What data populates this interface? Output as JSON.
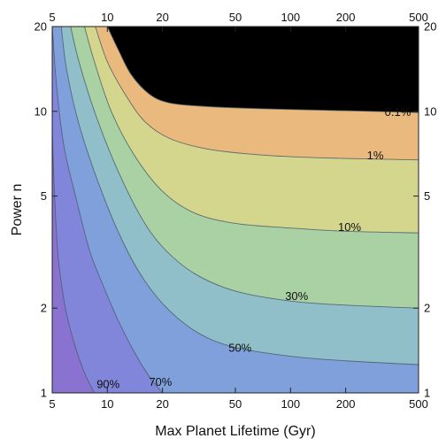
{
  "chart_data": {
    "type": "contour",
    "xlabel": "Max Planet Lifetime (Gyr)",
    "ylabel": "Power n",
    "x_scale": "log",
    "y_scale": "log",
    "xlim": [
      5,
      500
    ],
    "ylim": [
      1,
      20
    ],
    "x_ticks": [
      5,
      10,
      20,
      50,
      100,
      200,
      500
    ],
    "x_tick_labels": [
      "5",
      "10",
      "20",
      "50",
      "100",
      "200",
      "500"
    ],
    "y_ticks": [
      1,
      2,
      5,
      10,
      20
    ],
    "y_tick_labels": [
      "1",
      "2",
      "5",
      "10",
      "20"
    ],
    "grid": false,
    "band_colors": [
      "#8a72d0",
      "#8286db",
      "#7fa0db",
      "#90bfc9",
      "#a9d1a4",
      "#d3d68c",
      "#e9b97d"
    ],
    "contours": [
      {
        "label": "90%",
        "label_at": {
          "x": 10.1,
          "y": 1.08
        },
        "points": [
          [
            5,
            8.6
          ],
          [
            5.15,
            5.0
          ],
          [
            5.4,
            3.0
          ],
          [
            5.9,
            2.0
          ],
          [
            6.6,
            1.5
          ],
          [
            7.5,
            1.18
          ],
          [
            8.5,
            1.0
          ]
        ]
      },
      {
        "label": "70%",
        "label_at": {
          "x": 19.5,
          "y": 1.1
        },
        "points": [
          [
            5,
            20
          ],
          [
            5.3,
            12.0
          ],
          [
            5.8,
            7.5
          ],
          [
            6.7,
            5.0
          ],
          [
            8.0,
            3.2
          ],
          [
            9.5,
            2.4
          ],
          [
            11.5,
            1.8
          ],
          [
            14.0,
            1.4
          ],
          [
            17.0,
            1.14
          ],
          [
            20.0,
            1.0
          ]
        ]
      },
      {
        "label": "50%",
        "label_at": {
          "x": 53,
          "y": 1.45
        },
        "points": [
          [
            5.6,
            20
          ],
          [
            6.0,
            14.0
          ],
          [
            7.0,
            9.0
          ],
          [
            9.0,
            5.5
          ],
          [
            12.0,
            3.5
          ],
          [
            16.0,
            2.5
          ],
          [
            22.0,
            1.95
          ],
          [
            32.0,
            1.62
          ],
          [
            50.0,
            1.45
          ],
          [
            100.0,
            1.35
          ],
          [
            200.0,
            1.3
          ],
          [
            500.0,
            1.26
          ]
        ]
      },
      {
        "label": "30%",
        "label_at": {
          "x": 108,
          "y": 2.22
        },
        "points": [
          [
            6.3,
            20
          ],
          [
            7.0,
            15.0
          ],
          [
            8.5,
            10.0
          ],
          [
            11.0,
            6.5
          ],
          [
            15.0,
            4.3
          ],
          [
            20.0,
            3.3
          ],
          [
            30.0,
            2.65
          ],
          [
            50.0,
            2.3
          ],
          [
            100.0,
            2.12
          ],
          [
            200.0,
            2.05
          ],
          [
            500.0,
            2.0
          ]
        ]
      },
      {
        "label": "10%",
        "label_at": {
          "x": 210,
          "y": 3.9
        },
        "points": [
          [
            7.5,
            20
          ],
          [
            8.5,
            15.0
          ],
          [
            10.5,
            10.0
          ],
          [
            14.0,
            7.0
          ],
          [
            20.0,
            5.2
          ],
          [
            30.0,
            4.35
          ],
          [
            50.0,
            4.0
          ],
          [
            100.0,
            3.85
          ],
          [
            200.0,
            3.75
          ],
          [
            500.0,
            3.7
          ]
        ]
      },
      {
        "label": "1%",
        "label_at": {
          "x": 290,
          "y": 7.0
        },
        "points": [
          [
            8.6,
            20
          ],
          [
            10.0,
            15.0
          ],
          [
            12.5,
            11.5
          ],
          [
            16.0,
            9.2
          ],
          [
            22.0,
            8.0
          ],
          [
            35.0,
            7.35
          ],
          [
            60.0,
            7.05
          ],
          [
            100.0,
            6.9
          ],
          [
            200.0,
            6.8
          ],
          [
            500.0,
            6.72
          ]
        ]
      },
      {
        "label": "0.1%",
        "label_at": {
          "x": 385,
          "y": 10.0
        },
        "points": [
          [
            10.0,
            20
          ],
          [
            11.5,
            16.5
          ],
          [
            13.5,
            13.5
          ],
          [
            17.0,
            11.5
          ],
          [
            22.0,
            10.7
          ],
          [
            35.0,
            10.4
          ],
          [
            60.0,
            10.25
          ],
          [
            100.0,
            10.15
          ],
          [
            200.0,
            10.05
          ],
          [
            500.0,
            9.9
          ]
        ]
      }
    ]
  }
}
